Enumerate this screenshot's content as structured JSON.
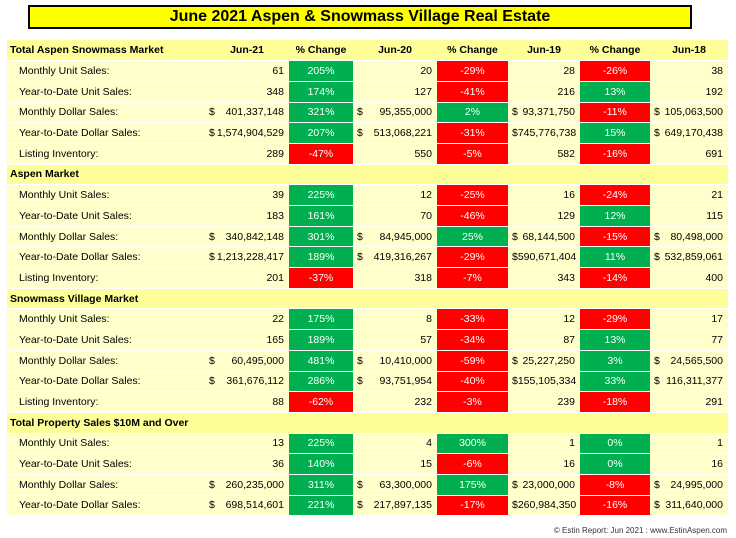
{
  "title": "June 2021 Aspen & Snowmass Village Real Estate",
  "headers": [
    "Total Aspen Snowmass Market",
    "Jun-21",
    "% Change",
    "Jun-20",
    "% Change",
    "Jun-19",
    "% Change",
    "Jun-18"
  ],
  "sections": [
    {
      "label": "Total Aspen Snowmass Market",
      "is_header_row": true,
      "rows": [
        {
          "label": "Monthly Unit Sales:",
          "jun21": "61",
          "chg1": "205%",
          "chg1_dir": "pos",
          "jun20": "20",
          "chg2": "-29%",
          "chg2_dir": "neg",
          "jun19": "28",
          "chg3": "-26%",
          "chg3_dir": "neg",
          "jun18": "38"
        },
        {
          "label": "Year-to-Date Unit Sales:",
          "jun21": "348",
          "chg1": "174%",
          "chg1_dir": "pos",
          "jun20": "127",
          "chg2": "-41%",
          "chg2_dir": "neg",
          "jun19": "216",
          "chg3": "13%",
          "chg3_dir": "pos",
          "jun18": "192"
        },
        {
          "label": "Monthly Dollar Sales:",
          "money": true,
          "jun21": "401,337,148",
          "chg1": "321%",
          "chg1_dir": "pos",
          "jun20": "95,355,000",
          "chg2": "2%",
          "chg2_dir": "pos",
          "jun19": "93,371,750",
          "chg3": "-11%",
          "chg3_dir": "neg",
          "jun18": "105,063,500"
        },
        {
          "label": "Year-to-Date Dollar Sales:",
          "money": true,
          "jun21": "1,574,904,529",
          "chg1": "207%",
          "chg1_dir": "pos",
          "jun20": "513,068,221",
          "chg2": "-31%",
          "chg2_dir": "neg",
          "jun19": "745,776,738",
          "chg3": "15%",
          "chg3_dir": "pos",
          "jun18": "649,170,438"
        },
        {
          "label": "Listing Inventory:",
          "jun21": "289",
          "chg1": "-47%",
          "chg1_dir": "neg",
          "jun20": "550",
          "chg2": "-5%",
          "chg2_dir": "neg",
          "jun19": "582",
          "chg3": "-16%",
          "chg3_dir": "neg",
          "jun18": "691"
        }
      ]
    },
    {
      "label": "Aspen Market",
      "rows": [
        {
          "label": "Monthly Unit Sales:",
          "jun21": "39",
          "chg1": "225%",
          "chg1_dir": "pos",
          "jun20": "12",
          "chg2": "-25%",
          "chg2_dir": "neg",
          "jun19": "16",
          "chg3": "-24%",
          "chg3_dir": "neg",
          "jun18": "21"
        },
        {
          "label": "Year-to-Date Unit Sales:",
          "jun21": "183",
          "chg1": "161%",
          "chg1_dir": "pos",
          "jun20": "70",
          "chg2": "-46%",
          "chg2_dir": "neg",
          "jun19": "129",
          "chg3": "12%",
          "chg3_dir": "pos",
          "jun18": "115"
        },
        {
          "label": "Monthly Dollar Sales:",
          "money": true,
          "jun21": "340,842,148",
          "chg1": "301%",
          "chg1_dir": "pos",
          "jun20": "84,945,000",
          "chg2": "25%",
          "chg2_dir": "pos",
          "jun19": "68,144,500",
          "chg3": "-15%",
          "chg3_dir": "neg",
          "jun18": "80,498,000"
        },
        {
          "label": "Year-to-Date Dollar Sales:",
          "money": true,
          "jun21": "1,213,228,417",
          "chg1": "189%",
          "chg1_dir": "pos",
          "jun20": "419,316,267",
          "chg2": "-29%",
          "chg2_dir": "neg",
          "jun19": "590,671,404",
          "chg3": "11%",
          "chg3_dir": "pos",
          "jun18": "532,859,061"
        },
        {
          "label": "Listing Inventory:",
          "jun21": "201",
          "chg1": "-37%",
          "chg1_dir": "neg",
          "jun20": "318",
          "chg2": "-7%",
          "chg2_dir": "neg",
          "jun19": "343",
          "chg3": "-14%",
          "chg3_dir": "neg",
          "jun18": "400"
        }
      ]
    },
    {
      "label": "Snowmass Village Market",
      "rows": [
        {
          "label": "Monthly Unit Sales:",
          "jun21": "22",
          "chg1": "175%",
          "chg1_dir": "pos",
          "jun20": "8",
          "chg2": "-33%",
          "chg2_dir": "neg",
          "jun19": "12",
          "chg3": "-29%",
          "chg3_dir": "neg",
          "jun18": "17"
        },
        {
          "label": "Year-to-Date Unit Sales:",
          "jun21": "165",
          "chg1": "189%",
          "chg1_dir": "pos",
          "jun20": "57",
          "chg2": "-34%",
          "chg2_dir": "neg",
          "jun19": "87",
          "chg3": "13%",
          "chg3_dir": "pos",
          "jun18": "77"
        },
        {
          "label": "Monthly Dollar Sales:",
          "money": true,
          "jun21": "60,495,000",
          "chg1": "481%",
          "chg1_dir": "pos",
          "jun20": "10,410,000",
          "chg2": "-59%",
          "chg2_dir": "neg",
          "jun19": "25,227,250",
          "chg3": "3%",
          "chg3_dir": "pos",
          "jun18": "24,565,500"
        },
        {
          "label": "Year-to-Date Dollar Sales:",
          "money": true,
          "jun21": "361,676,112",
          "chg1": "286%",
          "chg1_dir": "pos",
          "jun20": "93,751,954",
          "chg2": "-40%",
          "chg2_dir": "neg",
          "jun19": "155,105,334",
          "chg3": "33%",
          "chg3_dir": "pos",
          "jun18": "116,311,377"
        },
        {
          "label": "Listing Inventory:",
          "jun21": "88",
          "chg1": "-62%",
          "chg1_dir": "neg",
          "jun20": "232",
          "chg2": "-3%",
          "chg2_dir": "neg",
          "jun19": "239",
          "chg3": "-18%",
          "chg3_dir": "neg",
          "jun18": "291"
        }
      ]
    },
    {
      "label": "Total Property Sales $10M and Over",
      "rows": [
        {
          "label": "Monthly Unit Sales:",
          "jun21": "13",
          "chg1": "225%",
          "chg1_dir": "pos",
          "jun20": "4",
          "chg2": "300%",
          "chg2_dir": "pos",
          "jun19": "1",
          "chg3": "0%",
          "chg3_dir": "pos",
          "jun18": "1"
        },
        {
          "label": "Year-to-Date Unit Sales:",
          "jun21": "36",
          "chg1": "140%",
          "chg1_dir": "pos",
          "jun20": "15",
          "chg2": "-6%",
          "chg2_dir": "neg",
          "jun19": "16",
          "chg3": "0%",
          "chg3_dir": "pos",
          "jun18": "16"
        },
        {
          "label": "Monthly Dollar Sales:",
          "money": true,
          "jun21": "260,235,000",
          "chg1": "311%",
          "chg1_dir": "pos",
          "jun20": "63,300,000",
          "chg2": "175%",
          "chg2_dir": "pos",
          "jun19": "23,000,000",
          "chg3": "-8%",
          "chg3_dir": "neg",
          "jun18": "24,995,000"
        },
        {
          "label": "Year-to-Date Dollar Sales:",
          "money": true,
          "jun21": "698,514,601",
          "chg1": "221%",
          "chg1_dir": "pos",
          "jun20": "217,897,135",
          "chg2": "-17%",
          "chg2_dir": "neg",
          "jun19": "260,984,350",
          "chg3": "-16%",
          "chg3_dir": "neg",
          "jun18": "311,640,000"
        }
      ]
    }
  ],
  "currency_symbol": "$",
  "footer": "© Estin Report: Jun 2021 : www.EstinAspen.com",
  "colors": {
    "positive": "#00b050",
    "negative": "#ff0000",
    "header_bg": "#ffff99",
    "row_bg": "#ffffcc",
    "title_bg": "#ffff00"
  }
}
